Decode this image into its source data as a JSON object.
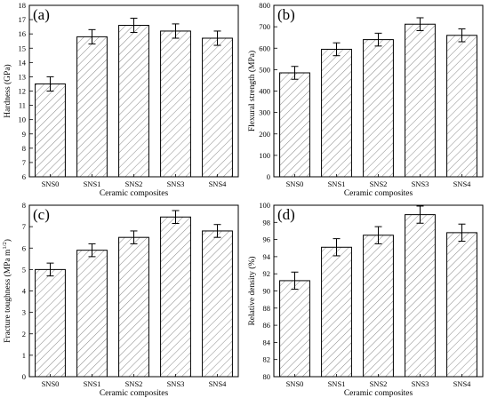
{
  "figure": {
    "chart_data": [
      {
        "type": "bar",
        "panel_label": "(a)",
        "categories": [
          "SNS0",
          "SNS1",
          "SNS2",
          "SNS3",
          "SNS4"
        ],
        "values": [
          12.5,
          15.8,
          16.6,
          16.2,
          15.7
        ],
        "errors": [
          0.5,
          0.5,
          0.5,
          0.5,
          0.5
        ],
        "xlabel": "Ceramic composites",
        "ylabel": "Hardness (GPa)",
        "ylim": [
          6,
          18
        ],
        "yticks": [
          6,
          7,
          8,
          9,
          10,
          11,
          12,
          13,
          14,
          15,
          16,
          17,
          18
        ]
      },
      {
        "type": "bar",
        "panel_label": "(b)",
        "categories": [
          "SNS0",
          "SNS1",
          "SNS2",
          "SNS3",
          "SNS4"
        ],
        "values": [
          485,
          595,
          640,
          712,
          660
        ],
        "errors": [
          30,
          30,
          30,
          30,
          30
        ],
        "xlabel": "Ceramic composites",
        "ylabel": "Flexural strength (MPa)",
        "ylim": [
          0,
          800
        ],
        "yticks": [
          0,
          100,
          200,
          300,
          400,
          500,
          600,
          700,
          800
        ]
      },
      {
        "type": "bar",
        "panel_label": "(c)",
        "categories": [
          "SNS0",
          "SNS1",
          "SNS2",
          "SNS3",
          "SNS4"
        ],
        "values": [
          5.0,
          5.9,
          6.5,
          7.45,
          6.8
        ],
        "errors": [
          0.3,
          0.3,
          0.3,
          0.3,
          0.3
        ],
        "xlabel": "Ceramic composites",
        "ylabel": "Fracture toughness (MPa m",
        "ylabel_sup": "1/2",
        "ylabel_end": ")",
        "ylim": [
          0,
          8
        ],
        "yticks": [
          0,
          1,
          2,
          3,
          4,
          5,
          6,
          7,
          8
        ]
      },
      {
        "type": "bar",
        "panel_label": "(d)",
        "categories": [
          "SNS0",
          "SNS1",
          "SNS2",
          "SNS3",
          "SNS4"
        ],
        "values": [
          91.2,
          95.1,
          96.5,
          98.9,
          96.8
        ],
        "errors": [
          1.0,
          1.0,
          1.0,
          1.0,
          1.0
        ],
        "xlabel": "Ceramic composites",
        "ylabel": "Relative density (%)",
        "ylim": [
          80,
          100
        ],
        "yticks": [
          80,
          82,
          84,
          86,
          88,
          90,
          92,
          94,
          96,
          98,
          100
        ]
      }
    ]
  }
}
